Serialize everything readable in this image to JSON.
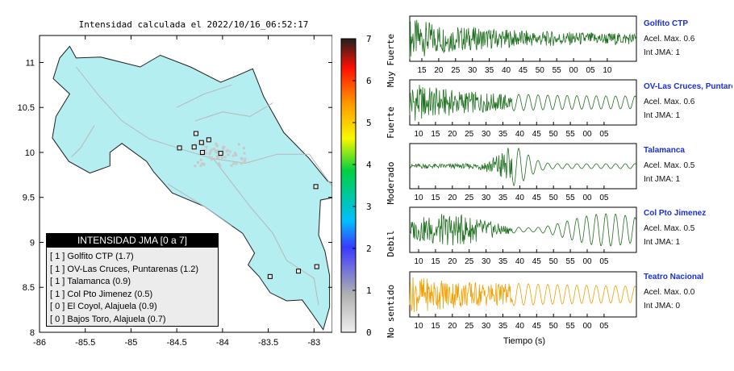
{
  "map": {
    "title": "Intensidad calculada el 2022/10/16_06:52:17",
    "x_ticks": [
      "-86",
      "-85.5",
      "-85",
      "-84.5",
      "-84",
      "-83.5",
      "-83"
    ],
    "y_ticks": [
      "11",
      "10.5",
      "10",
      "9.5",
      "9",
      "8.5",
      "8"
    ],
    "xlim": [
      -86,
      -82.8
    ],
    "ylim": [
      8,
      11.3
    ],
    "land_color": "#b4eef0",
    "stations_marked": [
      {
        "lon": -84.29,
        "lat": 10.21
      },
      {
        "lon": -84.23,
        "lat": 10.11
      },
      {
        "lon": -84.15,
        "lat": 10.14
      },
      {
        "lon": -84.47,
        "lat": 10.05
      },
      {
        "lon": -84.31,
        "lat": 10.06
      },
      {
        "lon": -84.22,
        "lat": 10.0
      },
      {
        "lon": -84.02,
        "lat": 9.99
      },
      {
        "lon": -82.98,
        "lat": 9.62
      },
      {
        "lon": -83.17,
        "lat": 8.68
      },
      {
        "lon": -82.97,
        "lat": 8.73
      },
      {
        "lon": -83.48,
        "lat": 8.62
      }
    ]
  },
  "legend": {
    "header": "INTENSIDAD JMA [0 a 7]",
    "items": [
      "[ 1 ]  Golfito CTP (1.7)",
      "[ 1 ]  OV-Las Cruces, Puntarenas (1.2)",
      "[ 1 ]  Talamanca (0.9)",
      "[ 1 ]  Col Pto Jimenez (0.5)",
      "[ 0 ]  El Coyol, Alajuela (0.9)",
      "[ 0 ]  Bajos Toro, Alajuela (0.7)"
    ]
  },
  "colorscale": {
    "ticks": [
      "0",
      "1",
      "2",
      "3",
      "4",
      "5",
      "6",
      "7"
    ],
    "category_labels": [
      "No sentido",
      "Debil",
      "Moderado",
      "Fuerte",
      "Muy Fuerte"
    ],
    "colors": [
      "#eeeeee",
      "#b0b0b0",
      "#3a3aff",
      "#00bfff",
      "#00d040",
      "#f8f800",
      "#ff9900",
      "#ff1000",
      "#202020"
    ]
  },
  "waveforms": {
    "xlabel": "Tiempo (s)",
    "stations": [
      {
        "name": "Golfito CTP",
        "acel": "Acel. Max. 0.6",
        "jma": "Int JMA: 1",
        "color": "#207020",
        "ticks": [
          "15",
          "20",
          "25",
          "30",
          "35",
          "40",
          "45",
          "50",
          "55",
          "00",
          "05",
          "10"
        ]
      },
      {
        "name": "OV-Las Cruces, Puntarenas",
        "acel": "Acel. Max. 0.6",
        "jma": "Int JMA: 1",
        "color": "#207020",
        "ticks": [
          "10",
          "15",
          "20",
          "25",
          "30",
          "35",
          "40",
          "45",
          "50",
          "55",
          "00",
          "05"
        ]
      },
      {
        "name": "Talamanca",
        "acel": "Acel. Max. 0.5",
        "jma": "Int JMA: 1",
        "color": "#207020",
        "ticks": [
          "10",
          "15",
          "20",
          "25",
          "30",
          "35",
          "40",
          "45",
          "50",
          "55",
          "00",
          "05"
        ]
      },
      {
        "name": "Col Pto Jimenez",
        "acel": "Acel. Max. 0.5",
        "jma": "Int JMA: 1",
        "color": "#207020",
        "ticks": [
          "10",
          "15",
          "20",
          "25",
          "30",
          "35",
          "40",
          "45",
          "50",
          "55",
          "00",
          "05"
        ]
      },
      {
        "name": "Teatro Nacional",
        "acel": "Acel. Max. 0.0",
        "jma": "Int JMA: 0",
        "color": "#f0a000",
        "ticks": [
          "10",
          "15",
          "20",
          "25",
          "30",
          "35",
          "40",
          "45",
          "50",
          "55",
          "00",
          "05"
        ]
      }
    ]
  },
  "chart_data": [
    {
      "type": "scatter",
      "title": "Intensidad calculada el 2022/10/16_06:52:17",
      "xlim": [
        -86,
        -82.8
      ],
      "ylim": [
        8,
        11.3
      ],
      "x_ticks": [
        -86,
        -85.5,
        -85,
        -84.5,
        -84,
        -83.5,
        -83
      ],
      "y_ticks": [
        11,
        10.5,
        10,
        9.5,
        9,
        8.5,
        8
      ]
    },
    {
      "type": "line",
      "xlabel": "Tiempo (s)",
      "series": [
        {
          "name": "Golfito CTP"
        },
        {
          "name": "OV-Las Cruces, Puntarenas"
        },
        {
          "name": "Talamanca"
        },
        {
          "name": "Col Pto Jimenez"
        },
        {
          "name": "Teatro Nacional"
        }
      ]
    }
  ]
}
